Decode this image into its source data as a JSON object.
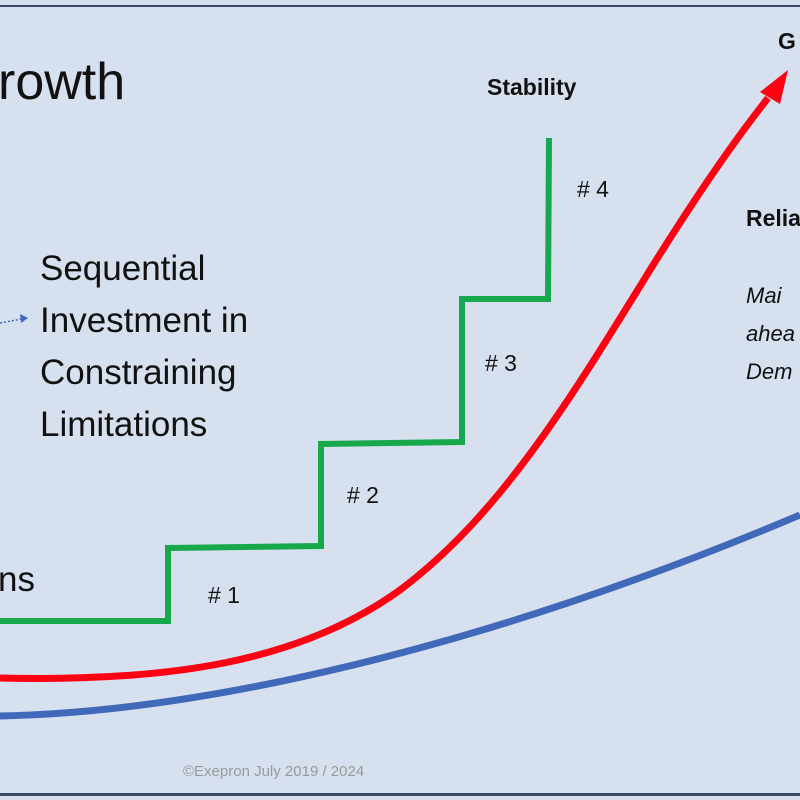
{
  "title_fragment": "rowth",
  "labels": {
    "stability": "Stability",
    "growth_fragment": "G",
    "reliability_fragment": "Relia",
    "left_fragment": "ns"
  },
  "reliability_desc": [
    "Mai",
    "ahea",
    "Dem"
  ],
  "sequential_text": [
    "Sequential",
    "Investment in",
    "Constraining",
    "Limitations"
  ],
  "steps": [
    "# 1",
    "# 2",
    "# 3",
    "# 4"
  ],
  "copyright": "©Exepron July 2019 / 2024",
  "colors": {
    "background": "#d7e0ef",
    "steps": "#17a84b",
    "growth": "#ff0012",
    "baseline": "#4169b9"
  }
}
